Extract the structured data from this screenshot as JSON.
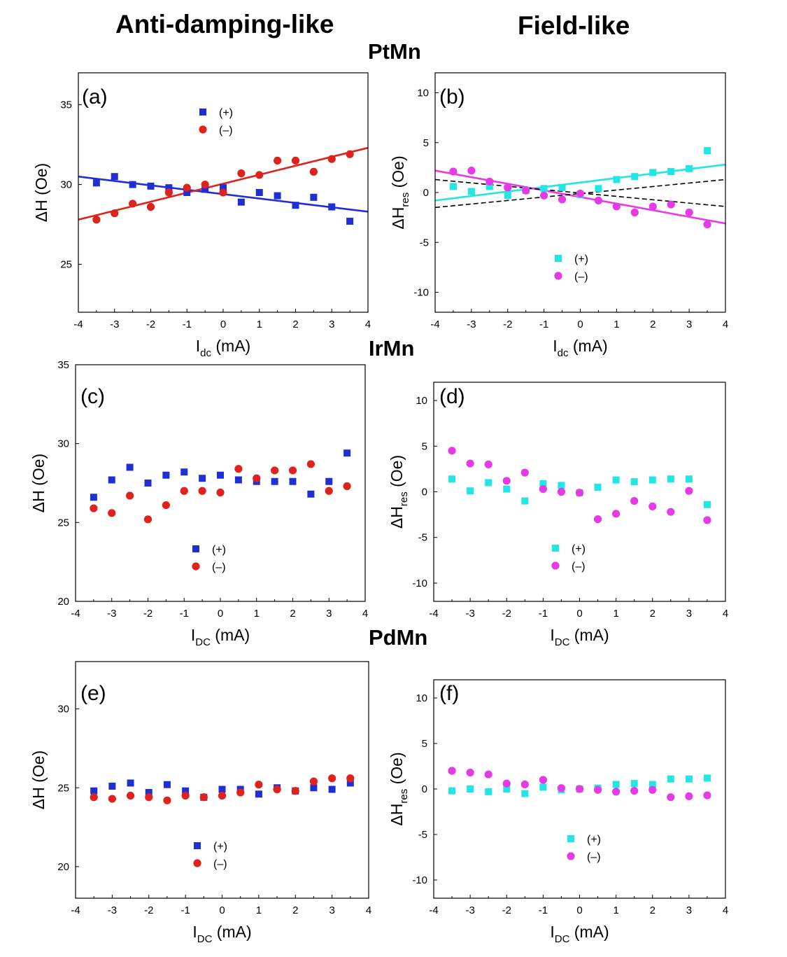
{
  "headers": {
    "left": "Anti-damping-like",
    "right": "Field-like",
    "row_titles": [
      "PtMn",
      "IrMn",
      "PdMn"
    ]
  },
  "colors": {
    "plus_adl": "#1f2fd6",
    "minus_adl": "#e0221c",
    "plus_fl": "#22e5e5",
    "minus_fl": "#e63ae6",
    "fit_blue": "#1f2fd6",
    "fit_red": "#e0221c",
    "fit_cyan": "#22e5e5",
    "fit_magenta": "#e63ae6",
    "dashed": "#000000"
  },
  "chart_data": [
    {
      "id": "a",
      "panel_label": "(a)",
      "type": "scatter",
      "xlabel": "I",
      "xlabel_sub": "dc",
      "xlabel_unit": " (mA)",
      "ylabel": "ΔH (Oe)",
      "ylabel_sub": "",
      "ylabel_unit": "",
      "xlim": [
        -4,
        4
      ],
      "ylim": [
        22,
        37
      ],
      "xticks": [
        -4,
        -3,
        -2,
        -1,
        0,
        1,
        2,
        3,
        4
      ],
      "yticks": [
        25,
        30,
        35
      ],
      "legend": {
        "plus": "(+)",
        "minus": "(–)"
      },
      "legend_position": "top-center",
      "series": [
        {
          "name": "(+)",
          "marker": "square",
          "color": "#1f2fd6",
          "x": [
            -3.5,
            -3,
            -2.5,
            -2,
            -1.5,
            -1,
            -0.5,
            0,
            0.5,
            1,
            1.5,
            2,
            2.5,
            3,
            3.5
          ],
          "y": [
            30.1,
            30.5,
            30.0,
            29.9,
            29.8,
            29.5,
            29.7,
            29.8,
            28.9,
            29.5,
            29.3,
            28.7,
            29.2,
            28.6,
            27.7
          ]
        },
        {
          "name": "(–)",
          "marker": "circle",
          "color": "#e0221c",
          "x": [
            -3.5,
            -3,
            -2.5,
            -2,
            -1.5,
            -1,
            -0.5,
            0,
            0.5,
            1,
            1.5,
            2,
            2.5,
            3,
            3.5
          ],
          "y": [
            27.8,
            28.2,
            28.8,
            28.6,
            29.5,
            29.8,
            30.0,
            29.5,
            30.7,
            30.6,
            31.5,
            31.5,
            30.8,
            31.6,
            31.9
          ]
        }
      ],
      "fits": [
        {
          "x": [
            -4,
            4
          ],
          "y": [
            30.5,
            28.3
          ],
          "color": "#1f2fd6",
          "style": "solid"
        },
        {
          "x": [
            -4,
            4
          ],
          "y": [
            27.8,
            32.3
          ],
          "color": "#e0221c",
          "style": "solid"
        }
      ]
    },
    {
      "id": "b",
      "panel_label": "(b)",
      "type": "scatter",
      "xlabel": "I",
      "xlabel_sub": "dc",
      "xlabel_unit": " (mA)",
      "ylabel": "ΔH",
      "ylabel_sub": "res",
      "ylabel_unit": " (Oe)",
      "xlim": [
        -4,
        4
      ],
      "ylim": [
        -12,
        12
      ],
      "xticks": [
        -4,
        -3,
        -2,
        -1,
        0,
        1,
        2,
        3,
        4
      ],
      "yticks": [
        -10,
        -5,
        0,
        5,
        10
      ],
      "legend": {
        "plus": "(+)",
        "minus": "(–)"
      },
      "legend_position": "bottom-center",
      "series": [
        {
          "name": "(+)",
          "marker": "square",
          "color": "#22e5e5",
          "x": [
            -3.5,
            -3,
            -2.5,
            -2,
            -1.5,
            -1,
            -0.5,
            0,
            0.5,
            1,
            1.5,
            2,
            2.5,
            3,
            3.5
          ],
          "y": [
            0.6,
            0.1,
            0.6,
            -0.3,
            0.2,
            0.4,
            0.5,
            -0.2,
            0.4,
            1.3,
            1.6,
            2.0,
            2.1,
            2.4,
            4.2
          ]
        },
        {
          "name": "(–)",
          "marker": "circle",
          "color": "#e63ae6",
          "x": [
            -3.5,
            -3,
            -2.5,
            -2,
            -1.5,
            -1,
            -0.5,
            0,
            0.5,
            1,
            1.5,
            2,
            2.5,
            3,
            3.5
          ],
          "y": [
            2.1,
            2.2,
            1.1,
            0.5,
            0.2,
            -0.3,
            -0.7,
            -0.1,
            -0.8,
            -1.4,
            -2.0,
            -1.4,
            -1.2,
            -2.0,
            -3.2
          ]
        }
      ],
      "fits": [
        {
          "x": [
            -4,
            4
          ],
          "y": [
            -0.8,
            2.8
          ],
          "color": "#22e5e5",
          "style": "solid"
        },
        {
          "x": [
            -4,
            4
          ],
          "y": [
            2.2,
            -3.1
          ],
          "color": "#e63ae6",
          "style": "solid"
        },
        {
          "x": [
            -4,
            4
          ],
          "y": [
            -1.5,
            1.3
          ],
          "color": "#000000",
          "style": "dashed"
        },
        {
          "x": [
            -4,
            4
          ],
          "y": [
            1.3,
            -1.4
          ],
          "color": "#000000",
          "style": "dashed"
        }
      ]
    },
    {
      "id": "c",
      "panel_label": "(c)",
      "type": "scatter",
      "xlabel": "I",
      "xlabel_sub": "DC",
      "xlabel_unit": " (mA)",
      "ylabel": "ΔH (Oe)",
      "ylabel_sub": "",
      "ylabel_unit": "",
      "xlim": [
        -4,
        4
      ],
      "ylim": [
        20,
        35
      ],
      "xticks": [
        -4,
        -3,
        -2,
        -1,
        0,
        1,
        2,
        3,
        4
      ],
      "yticks": [
        20,
        25,
        30,
        35
      ],
      "legend": {
        "plus": "(+)",
        "minus": "(–)"
      },
      "legend_position": "bottom-center",
      "series": [
        {
          "name": "(+)",
          "marker": "square",
          "color": "#1f2fd6",
          "x": [
            -3.5,
            -3,
            -2.5,
            -2,
            -1.5,
            -1,
            -0.5,
            0,
            0.5,
            1,
            1.5,
            2,
            2.5,
            3,
            3.5
          ],
          "y": [
            26.6,
            27.7,
            28.5,
            27.5,
            28.0,
            28.2,
            27.8,
            28.0,
            27.7,
            27.6,
            27.6,
            27.6,
            26.8,
            27.6,
            29.4
          ]
        },
        {
          "name": "(–)",
          "marker": "circle",
          "color": "#e0221c",
          "x": [
            -3.5,
            -3,
            -2.5,
            -2,
            -1.5,
            -1,
            -0.5,
            0,
            0.5,
            1,
            1.5,
            2,
            2.5,
            3,
            3.5
          ],
          "y": [
            25.9,
            25.6,
            26.7,
            25.2,
            26.1,
            27.0,
            27.0,
            26.9,
            28.4,
            27.8,
            28.3,
            28.3,
            28.7,
            27.0,
            27.3
          ]
        }
      ],
      "fits": []
    },
    {
      "id": "d",
      "panel_label": "(d)",
      "type": "scatter",
      "xlabel": "I",
      "xlabel_sub": "DC",
      "xlabel_unit": " (mA)",
      "ylabel": "ΔH",
      "ylabel_sub": "res",
      "ylabel_unit": " (Oe)",
      "xlim": [
        -4,
        4
      ],
      "ylim": [
        -12,
        12
      ],
      "xticks": [
        -4,
        -3,
        -2,
        -1,
        0,
        1,
        2,
        3,
        4
      ],
      "yticks": [
        -10,
        -5,
        0,
        5,
        10
      ],
      "legend": {
        "plus": "(+)",
        "minus": "(–)"
      },
      "legend_position": "bottom-center",
      "series": [
        {
          "name": "(+)",
          "marker": "square",
          "color": "#22e5e5",
          "x": [
            -3.5,
            -3,
            -2.5,
            -2,
            -1.5,
            -1,
            -0.5,
            0,
            0.5,
            1,
            1.5,
            2,
            2.5,
            3,
            3.5
          ],
          "y": [
            1.4,
            0.1,
            1.0,
            0.3,
            -1.0,
            0.9,
            0.7,
            -0.1,
            0.5,
            1.3,
            1.1,
            1.3,
            1.4,
            1.4,
            -1.4
          ]
        },
        {
          "name": "(–)",
          "marker": "circle",
          "color": "#e63ae6",
          "x": [
            -3.5,
            -3,
            -2.5,
            -2,
            -1.5,
            -1,
            -0.5,
            0,
            0.5,
            1,
            1.5,
            2,
            2.5,
            3,
            3.5
          ],
          "y": [
            4.5,
            3.1,
            3.0,
            1.2,
            2.1,
            0.3,
            0.0,
            -0.1,
            -3.0,
            -2.4,
            -1.0,
            -1.6,
            -2.2,
            0.1,
            -3.1
          ]
        }
      ],
      "fits": []
    },
    {
      "id": "e",
      "panel_label": "(e)",
      "type": "scatter",
      "xlabel": "I",
      "xlabel_sub": "DC",
      "xlabel_unit": " (mA)",
      "ylabel": "ΔH (Oe)",
      "ylabel_sub": "",
      "ylabel_unit": "",
      "xlim": [
        -4,
        4
      ],
      "ylim": [
        18,
        33
      ],
      "xticks": [
        -4,
        -3,
        -2,
        -1,
        0,
        1,
        2,
        3,
        4
      ],
      "yticks": [
        20,
        25,
        30
      ],
      "legend": {
        "plus": "(+)",
        "minus": "(–)"
      },
      "legend_position": "bottom-center",
      "series": [
        {
          "name": "(+)",
          "marker": "square",
          "color": "#1f2fd6",
          "x": [
            -3.5,
            -3,
            -2.5,
            -2,
            -1.5,
            -1,
            -0.5,
            0,
            0.5,
            1,
            1.5,
            2,
            2.5,
            3,
            3.5
          ],
          "y": [
            24.8,
            25.1,
            25.3,
            24.7,
            25.2,
            24.8,
            24.4,
            24.9,
            24.9,
            24.6,
            25.0,
            24.8,
            25.0,
            24.9,
            25.3
          ]
        },
        {
          "name": "(–)",
          "marker": "circle",
          "color": "#e0221c",
          "x": [
            -3.5,
            -3,
            -2.5,
            -2,
            -1.5,
            -1,
            -0.5,
            0,
            0.5,
            1,
            1.5,
            2,
            2.5,
            3,
            3.5
          ],
          "y": [
            24.4,
            24.3,
            24.5,
            24.4,
            24.2,
            24.5,
            24.4,
            24.5,
            24.7,
            25.2,
            24.9,
            24.8,
            25.4,
            25.6,
            25.6
          ]
        }
      ],
      "fits": []
    },
    {
      "id": "f",
      "panel_label": "(f)",
      "type": "scatter",
      "xlabel": "I",
      "xlabel_sub": "DC",
      "xlabel_unit": " (mA)",
      "ylabel": "ΔH",
      "ylabel_sub": "res",
      "ylabel_unit": " (Oe)",
      "xlim": [
        -4,
        4
      ],
      "ylim": [
        -12,
        12
      ],
      "xticks": [
        -4,
        -3,
        -2,
        -1,
        0,
        1,
        2,
        3,
        4
      ],
      "yticks": [
        -10,
        -5,
        0,
        5,
        10
      ],
      "legend": {
        "plus": "(+)",
        "minus": "(–)"
      },
      "legend_position": "bottom-center",
      "series": [
        {
          "name": "(+)",
          "marker": "square",
          "color": "#22e5e5",
          "x": [
            -3.5,
            -3,
            -2.5,
            -2,
            -1.5,
            -1,
            -0.5,
            0,
            0.5,
            1,
            1.5,
            2,
            2.5,
            3,
            3.5
          ],
          "y": [
            -0.2,
            0.0,
            -0.3,
            0.0,
            -0.5,
            0.2,
            -0.1,
            0.0,
            0.1,
            0.5,
            0.6,
            0.5,
            1.1,
            1.1,
            1.2
          ]
        },
        {
          "name": "(–)",
          "marker": "circle",
          "color": "#e63ae6",
          "x": [
            -3.5,
            -3,
            -2.5,
            -2,
            -1.5,
            -1,
            -0.5,
            0,
            0.5,
            1,
            1.5,
            2,
            2.5,
            3,
            3.5
          ],
          "y": [
            2.0,
            1.8,
            1.6,
            0.6,
            0.5,
            1.0,
            0.1,
            0.0,
            -0.1,
            -0.3,
            -0.2,
            -0.1,
            -0.9,
            -0.8,
            -0.7
          ]
        }
      ],
      "fits": []
    }
  ]
}
